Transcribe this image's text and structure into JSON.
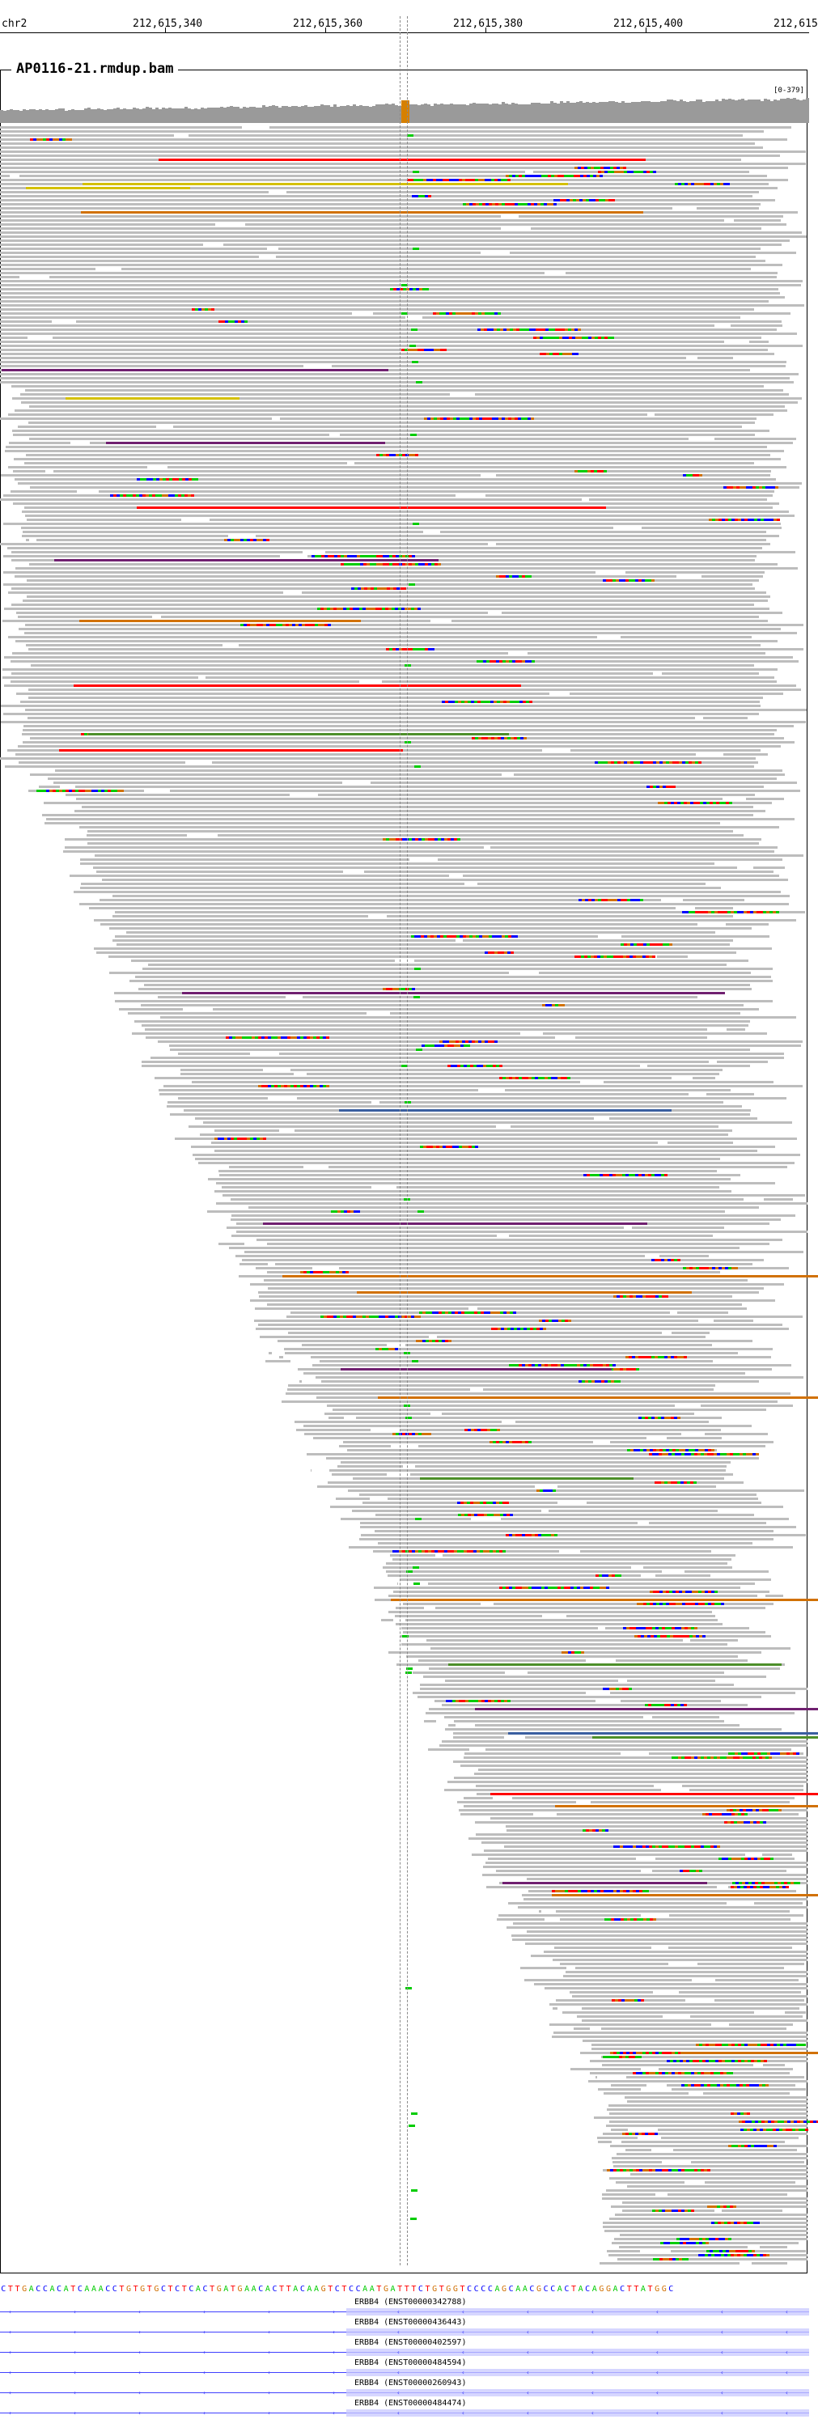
{
  "ruler": {
    "chrom": "chr2",
    "ticks": [
      "212,615,340",
      "212,615,360",
      "212,615,380",
      "212,615,400",
      "212,615"
    ]
  },
  "track": {
    "title": "AP0116-21.rmdup.bam",
    "coverage_range": "[0-379]"
  },
  "colors": {
    "read_gray": "#bdbdbd",
    "coverage_gray": "#9a9a9a",
    "coverage_highlight": "#d68000",
    "A": "#00cc00",
    "C": "#0000ff",
    "G": "#d17105",
    "T": "#ff0000",
    "insertion": "#8000ff",
    "transcript_line": "#4040ff"
  },
  "sequence": "CTTGACCACATCAAACCTGTGTGCTCTCACTGATGAACACTTACAAGTCTCCAATGATTTCTGTGGTCCCCAGCAACGCCACTACAGGACTTATGGC",
  "genes": [
    {
      "label": "ERBB4 (ENST00000342788)"
    },
    {
      "label": "ERBB4 (ENST00000436443)"
    },
    {
      "label": "ERBB4 (ENST00000402597)"
    },
    {
      "label": "ERBB4 (ENST00000484594)"
    },
    {
      "label": "ERBB4 (ENST00000260943)"
    },
    {
      "label": "ERBB4 (ENST00000484474)"
    }
  ]
}
